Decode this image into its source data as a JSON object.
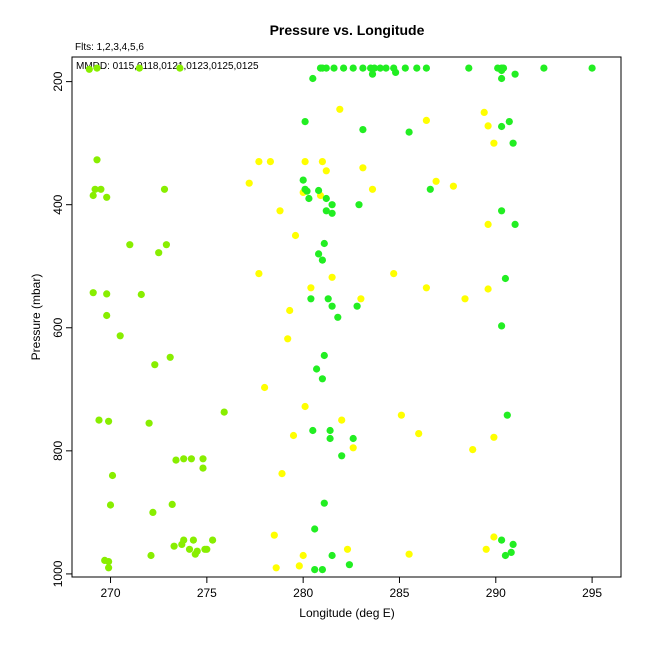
{
  "chart_data": {
    "type": "scatter",
    "title": "Pressure vs. Longitude",
    "xlabel": "Longitude (deg E)",
    "ylabel": "Pressure (mbar)",
    "annotations": [
      "Flts: 1,2,3,4,5,6",
      "MMDD: 0115,0118,0121,0123,0125,0125"
    ],
    "xlim": [
      268,
      296.5
    ],
    "ylim": [
      1005,
      160
    ],
    "y_inverted": true,
    "x_ticks": [
      270,
      275,
      280,
      285,
      290,
      295
    ],
    "y_ticks": [
      200,
      400,
      600,
      800,
      1000
    ],
    "grid": false,
    "legend": "none",
    "colors": {
      "green": "#22ee22",
      "lime": "#88ee00",
      "yellow": "#ffff00"
    },
    "series": [
      {
        "color": "#88ee00",
        "points": [
          [
            268.9,
            180
          ],
          [
            269.3,
            178
          ],
          [
            271.5,
            178
          ],
          [
            273.6,
            178
          ],
          [
            269.3,
            327
          ],
          [
            269.1,
            385
          ],
          [
            269.2,
            375
          ],
          [
            269.5,
            375
          ],
          [
            269.8,
            388
          ],
          [
            272.8,
            375
          ],
          [
            271.0,
            465
          ],
          [
            272.5,
            478
          ],
          [
            272.9,
            465
          ],
          [
            269.1,
            543
          ],
          [
            269.8,
            545
          ],
          [
            271.6,
            546
          ],
          [
            269.8,
            580
          ],
          [
            270.5,
            613
          ],
          [
            272.3,
            660
          ],
          [
            273.1,
            648
          ],
          [
            275.9,
            737
          ],
          [
            269.4,
            750
          ],
          [
            269.9,
            752
          ],
          [
            272.0,
            755
          ],
          [
            273.4,
            815
          ],
          [
            273.8,
            813
          ],
          [
            274.2,
            813
          ],
          [
            274.8,
            813
          ],
          [
            274.8,
            828
          ],
          [
            270.1,
            840
          ],
          [
            270.0,
            888
          ],
          [
            273.2,
            887
          ],
          [
            272.2,
            900
          ],
          [
            273.8,
            945
          ],
          [
            274.3,
            945
          ],
          [
            275.3,
            945
          ],
          [
            273.7,
            952
          ],
          [
            273.3,
            955
          ],
          [
            274.1,
            960
          ],
          [
            274.5,
            963
          ],
          [
            274.9,
            960
          ],
          [
            275.0,
            960
          ],
          [
            274.4,
            968
          ],
          [
            272.1,
            970
          ],
          [
            269.7,
            978
          ],
          [
            269.9,
            980
          ],
          [
            269.9,
            990
          ]
        ]
      },
      {
        "color": "#ffff00",
        "points": [
          [
            281.9,
            245
          ],
          [
            286.4,
            263
          ],
          [
            289.4,
            250
          ],
          [
            289.6,
            272
          ],
          [
            289.9,
            300
          ],
          [
            277.7,
            330
          ],
          [
            278.3,
            330
          ],
          [
            280.1,
            330
          ],
          [
            281.0,
            330
          ],
          [
            281.2,
            345
          ],
          [
            283.1,
            340
          ],
          [
            277.2,
            365
          ],
          [
            283.6,
            375
          ],
          [
            286.9,
            362
          ],
          [
            287.8,
            370
          ],
          [
            280.0,
            380
          ],
          [
            280.9,
            385
          ],
          [
            278.8,
            410
          ],
          [
            279.6,
            450
          ],
          [
            289.6,
            432
          ],
          [
            277.7,
            512
          ],
          [
            281.5,
            518
          ],
          [
            284.7,
            512
          ],
          [
            280.4,
            535
          ],
          [
            286.4,
            535
          ],
          [
            289.6,
            537
          ],
          [
            288.4,
            553
          ],
          [
            283.0,
            553
          ],
          [
            279.3,
            572
          ],
          [
            279.2,
            618
          ],
          [
            278.0,
            697
          ],
          [
            280.1,
            728
          ],
          [
            282.0,
            750
          ],
          [
            285.1,
            742
          ],
          [
            279.5,
            775
          ],
          [
            282.6,
            795
          ],
          [
            286.0,
            772
          ],
          [
            288.8,
            798
          ],
          [
            289.9,
            778
          ],
          [
            278.9,
            837
          ],
          [
            278.5,
            937
          ],
          [
            282.3,
            960
          ],
          [
            289.5,
            960
          ],
          [
            289.9,
            940
          ],
          [
            285.5,
            968
          ],
          [
            280.0,
            970
          ],
          [
            278.6,
            990
          ],
          [
            279.8,
            987
          ]
        ]
      },
      {
        "color": "#22ee22",
        "points": [
          [
            280.9,
            178
          ],
          [
            281.0,
            178
          ],
          [
            281.2,
            178
          ],
          [
            281.6,
            178
          ],
          [
            282.1,
            178
          ],
          [
            282.6,
            178
          ],
          [
            283.1,
            178
          ],
          [
            283.5,
            178
          ],
          [
            283.7,
            178
          ],
          [
            284.0,
            178
          ],
          [
            284.3,
            178
          ],
          [
            284.7,
            178
          ],
          [
            285.3,
            178
          ],
          [
            285.9,
            178
          ],
          [
            286.4,
            178
          ],
          [
            288.6,
            178
          ],
          [
            290.1,
            178
          ],
          [
            290.3,
            178
          ],
          [
            290.4,
            178
          ],
          [
            292.5,
            178
          ],
          [
            295.0,
            178
          ],
          [
            280.5,
            195
          ],
          [
            283.6,
            188
          ],
          [
            284.8,
            185
          ],
          [
            290.3,
            195
          ],
          [
            291.0,
            188
          ],
          [
            290.3,
            182
          ],
          [
            280.1,
            265
          ],
          [
            283.1,
            278
          ],
          [
            285.5,
            282
          ],
          [
            290.7,
            265
          ],
          [
            290.3,
            273
          ],
          [
            290.9,
            300
          ],
          [
            280.0,
            360
          ],
          [
            280.1,
            375
          ],
          [
            280.2,
            378
          ],
          [
            280.8,
            377
          ],
          [
            280.3,
            390
          ],
          [
            281.2,
            390
          ],
          [
            281.5,
            400
          ],
          [
            281.2,
            410
          ],
          [
            281.5,
            414
          ],
          [
            282.9,
            400
          ],
          [
            286.6,
            375
          ],
          [
            290.3,
            410
          ],
          [
            291.0,
            432
          ],
          [
            281.1,
            463
          ],
          [
            280.8,
            480
          ],
          [
            281.0,
            490
          ],
          [
            280.4,
            553
          ],
          [
            281.3,
            553
          ],
          [
            281.5,
            565
          ],
          [
            281.8,
            583
          ],
          [
            282.8,
            565
          ],
          [
            290.5,
            520
          ],
          [
            290.3,
            597
          ],
          [
            281.1,
            645
          ],
          [
            280.7,
            667
          ],
          [
            281.0,
            683
          ],
          [
            280.5,
            767
          ],
          [
            281.4,
            767
          ],
          [
            281.4,
            780
          ],
          [
            282.6,
            780
          ],
          [
            282.0,
            808
          ],
          [
            290.6,
            742
          ],
          [
            281.1,
            885
          ],
          [
            280.6,
            927
          ],
          [
            281.5,
            970
          ],
          [
            282.4,
            985
          ],
          [
            280.6,
            993
          ],
          [
            281.0,
            993
          ],
          [
            290.3,
            945
          ],
          [
            290.5,
            970
          ],
          [
            290.8,
            965
          ],
          [
            290.9,
            952
          ]
        ]
      }
    ]
  }
}
